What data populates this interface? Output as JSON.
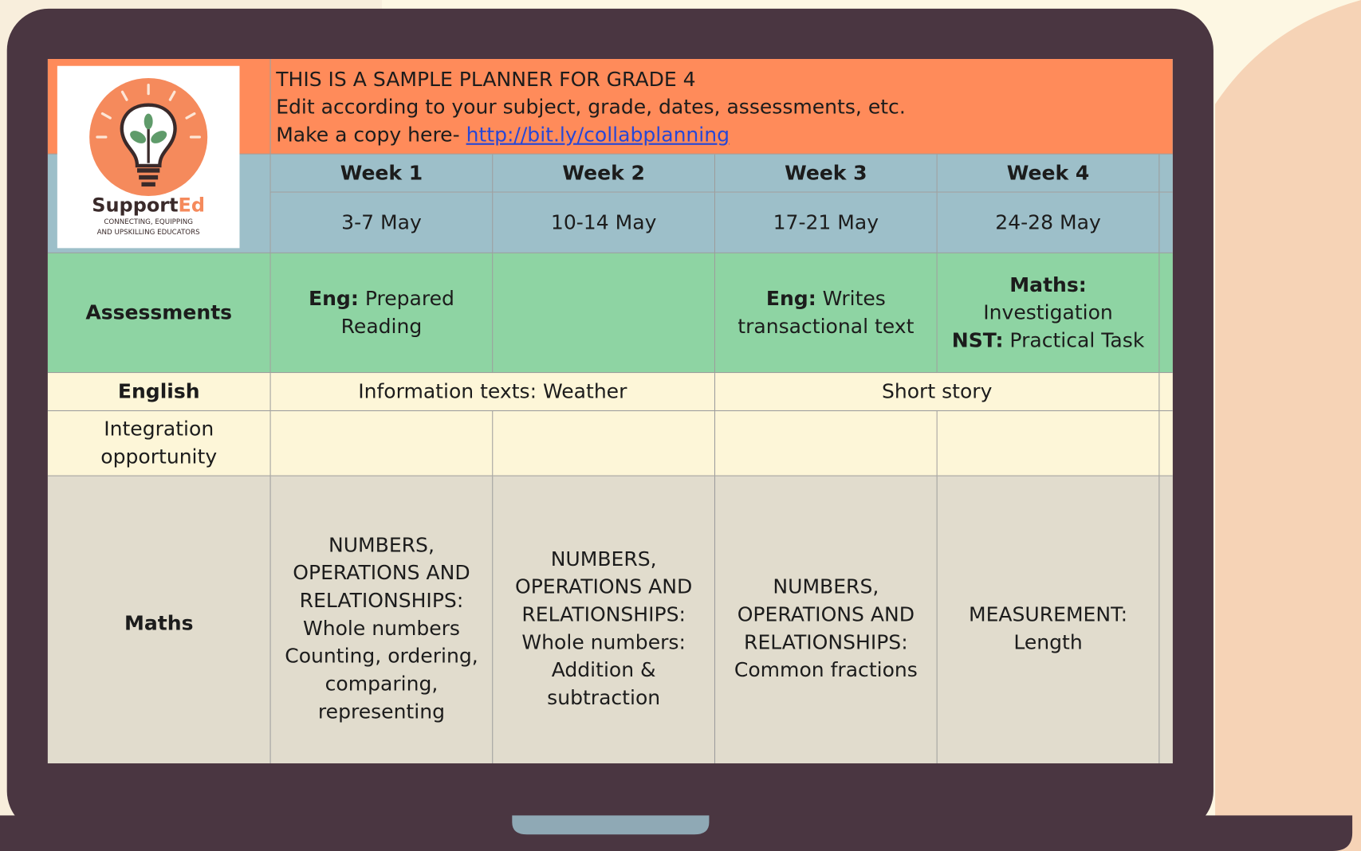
{
  "logo": {
    "name_a": "Support",
    "name_b": "Ed",
    "tagline_1": "CONNECTING, EQUIPPING",
    "tagline_2": "AND UPSKILLING EDUCATORS"
  },
  "header": {
    "line_1": "THIS IS A SAMPLE PLANNER FOR GRADE 4",
    "line_2": "Edit according to your subject, grade, dates, assessments, etc.",
    "line_3": "Make a copy here-",
    "link": "http://bit.ly/collabplanning"
  },
  "weeks": [
    {
      "week": "Week 1",
      "dates": "3-7 May"
    },
    {
      "week": "Week 2",
      "dates": "10-14 May"
    },
    {
      "week": "Week 3",
      "dates": "17-21 May"
    },
    {
      "week": "Week 4",
      "dates": "24-28 May"
    }
  ],
  "rows": {
    "assessments": {
      "label": "Assessments",
      "cells": [
        [
          {
            "bold": "Eng:",
            "text": "Prepared Reading"
          }
        ],
        [],
        [
          {
            "bold": "Eng:",
            "text": "Writes transactional text"
          }
        ],
        [
          {
            "bold": "Maths:",
            "text": "Investigation"
          },
          {
            "bold": "NST:",
            "text": "Practical Task"
          }
        ]
      ]
    },
    "english": {
      "label": "English",
      "spans": [
        "Information texts: Weather",
        "Short story"
      ]
    },
    "integration": {
      "label": "Integration opportunity"
    },
    "maths": {
      "label": "Maths",
      "cells": [
        "NUMBERS, OPERATIONS AND RELATIONSHIPS: Whole numbers Counting, ordering, comparing, representing",
        "NUMBERS, OPERATIONS AND RELATIONSHIPS: Whole numbers: Addition & subtraction",
        "NUMBERS, OPERATIONS AND RELATIONSHIPS: Common fractions",
        "MEASUREMENT: Length"
      ]
    }
  }
}
